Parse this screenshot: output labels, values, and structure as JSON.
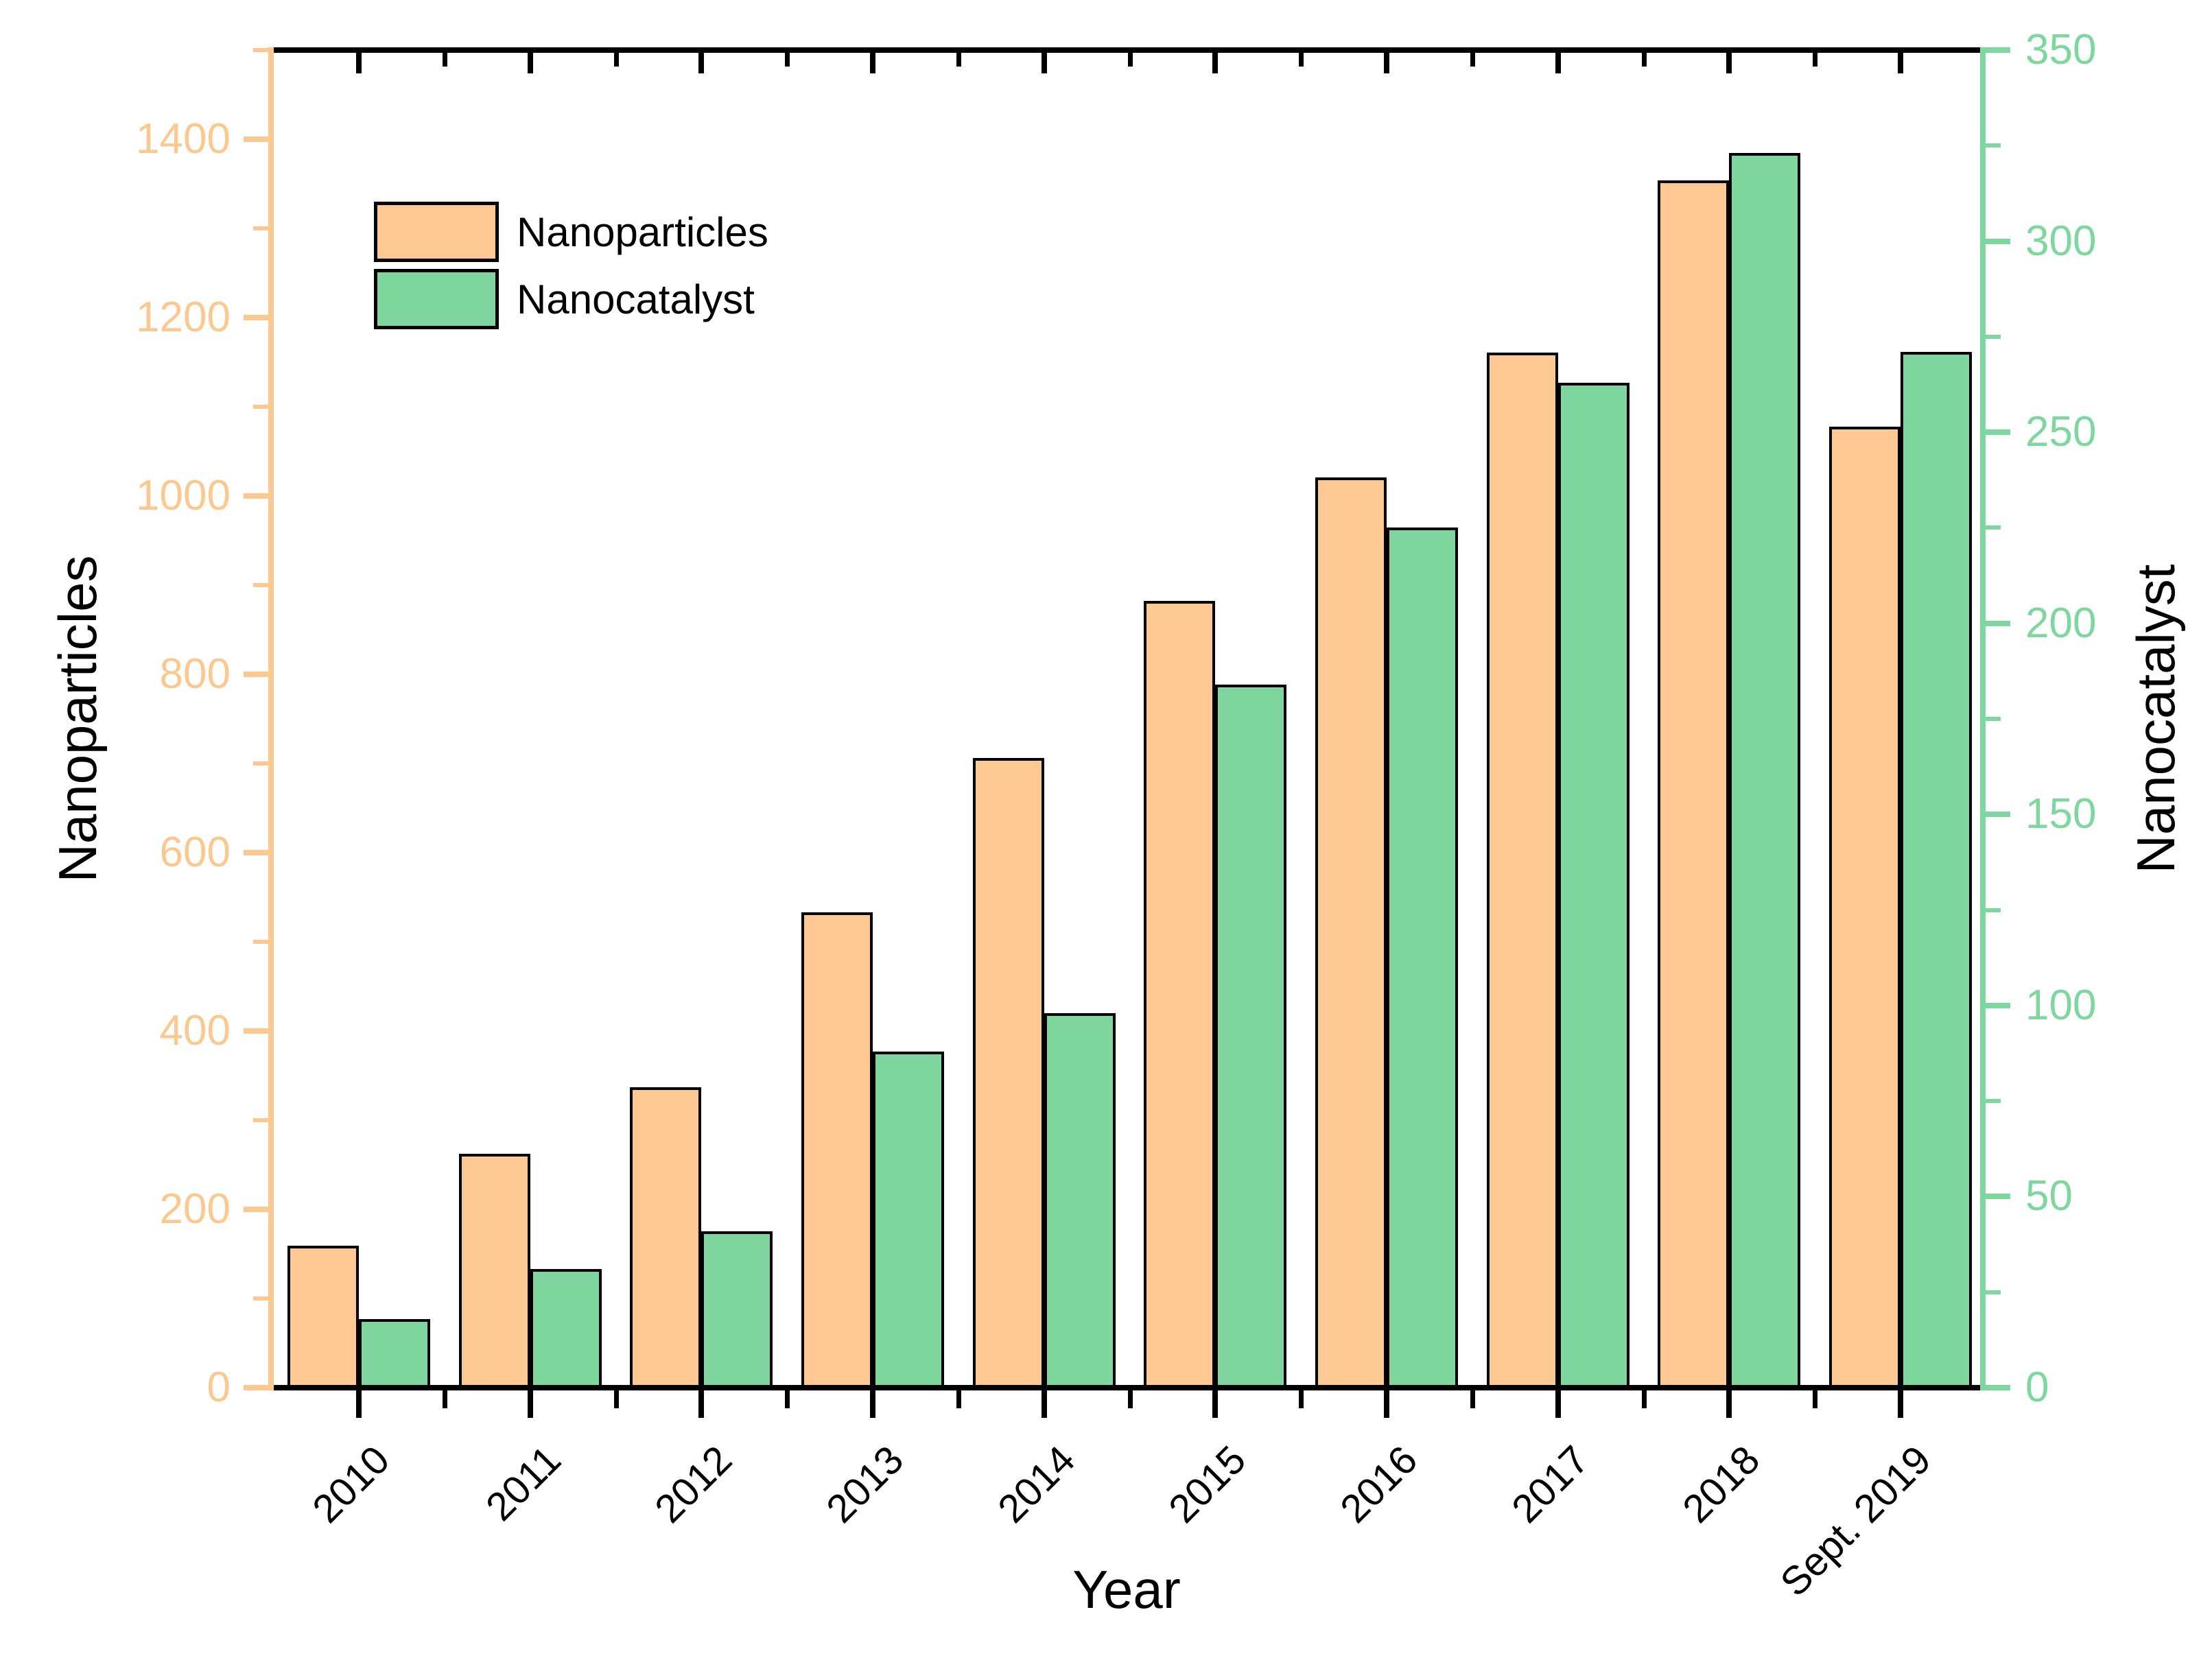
{
  "figure": {
    "legend": {
      "items": [
        {
          "label": "Nanoparticles",
          "color": "#FDC892"
        },
        {
          "label": "Nanocatalyst",
          "color": "#7ED69E"
        }
      ]
    },
    "titles": {
      "x_axis": "Year",
      "left_axis": "Nanoparticles",
      "right_axis": "Nanocatalyst"
    },
    "colors": {
      "left_axis": "#FBC98F",
      "right_axis": "#7FD7A0",
      "frame": "#000000",
      "bar_outline": "#000000",
      "background": "#ffffff"
    }
  },
  "chart_data": {
    "type": "bar",
    "title": "",
    "xlabel": "Year",
    "ylabel_left": "Nanoparticles",
    "ylabel_right": "Nanocatalyst",
    "categories": [
      "2010",
      "2011",
      "2012",
      "2013",
      "2014",
      "2015",
      "2016",
      "2017",
      "2018",
      "Sept. 2019"
    ],
    "series": [
      {
        "name": "Nanoparticles",
        "axis": "left",
        "color": "#FDC892",
        "values": [
          159,
          262,
          337,
          533,
          706,
          882,
          1021,
          1161,
          1354,
          1078
        ]
      },
      {
        "name": "Nanocatalyst",
        "axis": "right",
        "color": "#7ED69E",
        "values": [
          18,
          31,
          41,
          88,
          98,
          184,
          225,
          263,
          323,
          271
        ]
      }
    ],
    "left_axis": {
      "ylim": [
        0,
        1500
      ],
      "major_step": 200,
      "minor_step": 100,
      "tick_labels": [
        0,
        200,
        400,
        600,
        800,
        1000,
        1200,
        1400
      ]
    },
    "right_axis": {
      "ylim": [
        0,
        350
      ],
      "major_step": 50,
      "minor_step": 25,
      "tick_labels": [
        0,
        50,
        100,
        150,
        200,
        250,
        300,
        350
      ]
    },
    "grid": false,
    "legend_position": "top-left-inside"
  }
}
